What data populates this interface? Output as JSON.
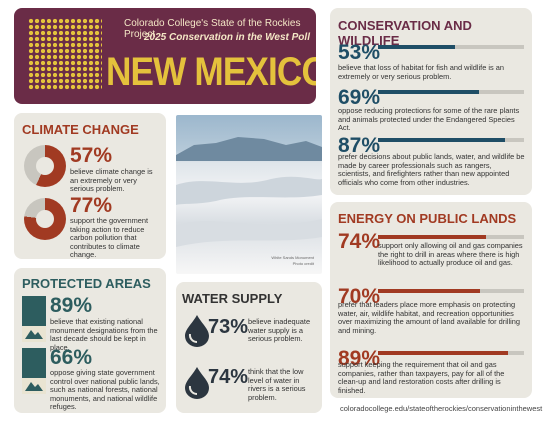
{
  "header": {
    "line1": "Colorado College's State of the Rockies Project",
    "line2": "2025 Conservation in the West Poll",
    "title": "NEW MEXICO",
    "accent": "#e4c23c",
    "bg": "#6a2c47"
  },
  "climate": {
    "title": "CLIMATE CHANGE",
    "items": [
      {
        "pct": "57%",
        "value": 0.57,
        "text": "believe climate change is an extremely or very serious problem."
      },
      {
        "pct": "77%",
        "value": 0.77,
        "text": "support the government taking action to reduce carbon pollution that contributes to climate change."
      }
    ]
  },
  "protected": {
    "title": "PROTECTED AREAS",
    "items": [
      {
        "pct": "89%",
        "value": 0.89,
        "text": "believe that existing national monument designations from the last decade should be kept in place."
      },
      {
        "pct": "66%",
        "value": 0.66,
        "text": "oppose giving state government control over national public lands, such as national forests, national monuments, and national wildlife refuges."
      }
    ]
  },
  "photo": {
    "credit1": "White Sands Monument",
    "credit2": "Photo credit"
  },
  "water": {
    "title": "WATER SUPPLY",
    "items": [
      {
        "pct": "73%",
        "value": 0.73,
        "text": "believe inadequate water supply is a serious problem."
      },
      {
        "pct": "74%",
        "value": 0.74,
        "text": "think that the low level of water in rivers is a serious problem."
      }
    ]
  },
  "conservation": {
    "title": "CONSERVATION AND WILDLIFE",
    "items": [
      {
        "pct": "53%",
        "value": 0.53,
        "text": "believe that loss of habitat for fish and wildlife is an extremely or very serious problem."
      },
      {
        "pct": "69%",
        "value": 0.69,
        "text": "oppose reducing protections for some of the rare plants and animals protected under the Endangered Species Act."
      },
      {
        "pct": "87%",
        "value": 0.87,
        "text": "prefer decisions about public lands, water, and wildlife be made by career professionals such as rangers, scientists, and firefighters rather than new appointed officials who come from other industries."
      }
    ]
  },
  "energy": {
    "title": "ENERGY ON PUBLIC LANDS",
    "items": [
      {
        "pct": "74%",
        "value": 0.74,
        "text": "support only allowing oil and gas companies the right to drill in areas where there is high likelihood to actually produce oil and gas."
      },
      {
        "pct": "70%",
        "value": 0.7,
        "text": "prefer that leaders place more emphasis on protecting water, air, wildlife habitat, and recreation opportunities over maximizing the amount of land available for drilling and mining."
      },
      {
        "pct": "89%",
        "value": 0.89,
        "text": "support keeping the requirement that oil and gas companies, rather than taxpayers, pay for all of the clean-up and land restoration costs after drilling is finished."
      }
    ]
  },
  "footer": {
    "url": "coloradocollege.edu/stateoftherockies/conservationinthewest"
  },
  "colors": {
    "blue": "#1f4e66",
    "red": "#a13a22",
    "teal": "#2d5d5f",
    "panel": "#eae8e1"
  }
}
